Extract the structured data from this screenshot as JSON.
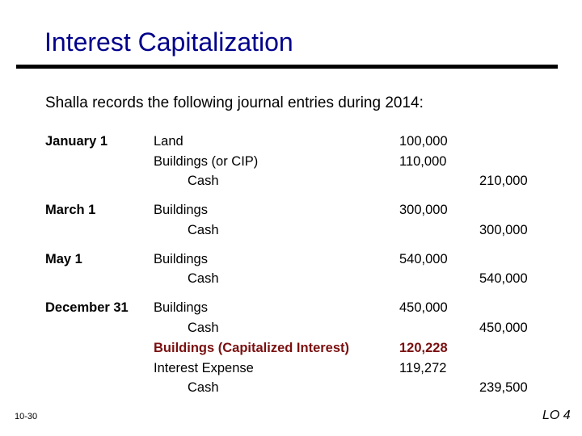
{
  "title": "Interest Capitalization",
  "intro": "Shalla records the following journal entries during 2014:",
  "entries": [
    {
      "date": "January 1",
      "lines": [
        {
          "account": "Land",
          "debit": "100,000",
          "credit": ""
        },
        {
          "account": "Buildings (or CIP)",
          "debit": "110,000",
          "credit": ""
        },
        {
          "account": "Cash",
          "debit": "",
          "credit": "210,000"
        }
      ]
    },
    {
      "date": "March 1",
      "lines": [
        {
          "account": "Buildings",
          "debit": "300,000",
          "credit": ""
        },
        {
          "account": "Cash",
          "debit": "",
          "credit": "300,000"
        }
      ]
    },
    {
      "date": "May 1",
      "lines": [
        {
          "account": "Buildings",
          "debit": "540,000",
          "credit": ""
        },
        {
          "account": "Cash",
          "debit": "",
          "credit": "540,000"
        }
      ]
    },
    {
      "date": "December 31",
      "lines": [
        {
          "account": "Buildings",
          "debit": "450,000",
          "credit": ""
        },
        {
          "account": "Cash",
          "debit": "",
          "credit": "450,000"
        },
        {
          "account": "Buildings (Capitalized Interest)",
          "debit": "120,228",
          "credit": ""
        },
        {
          "account": "Interest Expense",
          "debit": "119,272",
          "credit": ""
        },
        {
          "account": "Cash",
          "debit": "",
          "credit": "239,500"
        }
      ]
    }
  ],
  "slide_number": "10-30",
  "learning_objective": "LO 4",
  "colors": {
    "title": "#00008b",
    "highlight": "#7a1010"
  }
}
